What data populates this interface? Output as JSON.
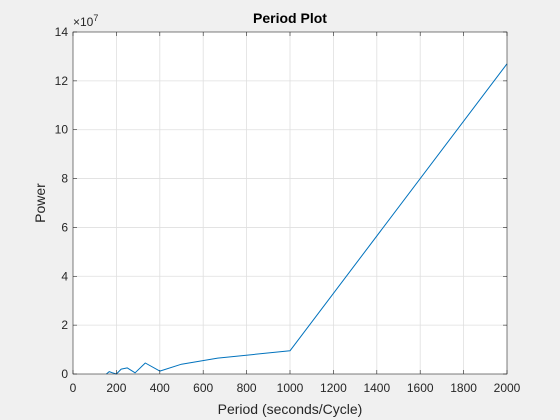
{
  "chart_data": {
    "type": "line",
    "title": "Period Plot",
    "xlabel": "Period (seconds/Cycle)",
    "ylabel": "Power",
    "xlim": [
      0,
      2000
    ],
    "ylim": [
      0,
      14
    ],
    "y_exponent_base": "×10",
    "y_exponent_power": "7",
    "xticks": [
      0,
      200,
      400,
      600,
      800,
      1000,
      1200,
      1400,
      1600,
      1800,
      2000
    ],
    "yticks": [
      0,
      2,
      4,
      6,
      8,
      10,
      12,
      14
    ],
    "grid": true,
    "series": [
      {
        "color": "#0072bd",
        "x": [
          154,
          167,
          182,
          200,
          222,
          250,
          286,
          333,
          400,
          500,
          667,
          1000,
          2000
        ],
        "y": [
          0.0,
          0.1,
          0.05,
          0.0,
          0.2,
          0.25,
          0.05,
          0.45,
          0.12,
          0.4,
          0.65,
          0.95,
          12.7
        ]
      }
    ]
  }
}
